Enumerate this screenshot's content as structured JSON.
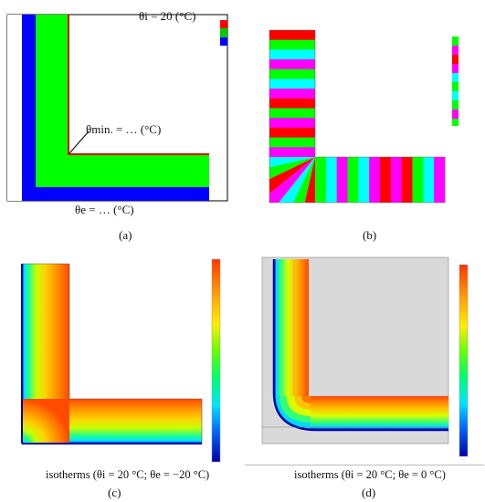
{
  "panels": [
    {
      "id": "a",
      "letter": "(a)",
      "annotations": {
        "theta_i": "θi = 20 (°C)",
        "theta_min": "θmin. = … (°C)",
        "theta_e": "θe = … (°C)"
      },
      "colors": {
        "inner": "#ff0000",
        "wall": "#00ff00",
        "outer": "#0000ff"
      }
    },
    {
      "id": "b",
      "letter": "(b)",
      "colors": [
        "#ff0000",
        "#ff00ff",
        "#00ffff",
        "#00ff00"
      ]
    },
    {
      "id": "c",
      "letter": "(c)",
      "caption": "isotherms (θi = 20 °C; θe = −20 °C)"
    },
    {
      "id": "d",
      "letter": "(d)",
      "caption": "isotherms (θi = 20 °C; θe = 0 °C)"
    }
  ],
  "palette": {
    "background": "#ffffff",
    "frame": "#000000",
    "grey_region": "#d9d9d9"
  }
}
